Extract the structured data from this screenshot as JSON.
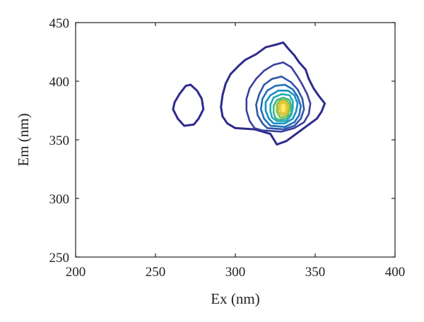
{
  "chart_data": {
    "type": "contour",
    "title": "",
    "xlabel": "Ex (nm)",
    "ylabel": "Em (nm)",
    "xlim": [
      200,
      400
    ],
    "ylim": [
      250,
      450
    ],
    "xticks": [
      200,
      250,
      300,
      350,
      400
    ],
    "yticks": [
      250,
      300,
      350,
      400,
      450
    ],
    "grid": false,
    "contours": [
      {
        "level": 1,
        "color": "#2e2a8c",
        "points": [
          [
            268,
            362
          ],
          [
            274,
            363
          ],
          [
            277,
            368
          ],
          [
            280,
            376
          ],
          [
            279,
            385
          ],
          [
            276,
            392
          ],
          [
            272,
            397
          ],
          [
            269,
            396
          ],
          [
            265,
            389
          ],
          [
            262,
            382
          ],
          [
            261,
            376
          ],
          [
            264,
            368
          ]
        ]
      },
      {
        "level": 1,
        "color": "#2e2a8c",
        "points": [
          [
            300,
            360
          ],
          [
            312,
            359
          ],
          [
            322,
            355
          ],
          [
            326,
            346
          ],
          [
            332,
            349
          ],
          [
            338,
            355
          ],
          [
            345,
            362
          ],
          [
            351,
            368
          ],
          [
            354,
            374
          ],
          [
            356,
            381
          ],
          [
            352,
            388
          ],
          [
            349,
            394
          ],
          [
            346,
            402
          ],
          [
            344,
            410
          ],
          [
            340,
            416
          ],
          [
            337,
            422
          ],
          [
            333,
            428
          ],
          [
            330,
            433
          ],
          [
            325,
            431
          ],
          [
            319,
            429
          ],
          [
            313,
            423
          ],
          [
            306,
            418
          ],
          [
            302,
            413
          ],
          [
            297,
            406
          ],
          [
            294,
            398
          ],
          [
            292,
            388
          ],
          [
            291,
            378
          ],
          [
            292,
            370
          ],
          [
            295,
            364
          ]
        ]
      },
      {
        "level": 2,
        "color": "#3b3f9e",
        "points": [
          [
            317,
            358
          ],
          [
            329,
            357
          ],
          [
            337,
            360
          ],
          [
            343,
            365
          ],
          [
            346,
            372
          ],
          [
            347,
            381
          ],
          [
            345,
            389
          ],
          [
            342,
            397
          ],
          [
            339,
            404
          ],
          [
            335,
            412
          ],
          [
            330,
            416
          ],
          [
            324,
            414
          ],
          [
            318,
            409
          ],
          [
            313,
            402
          ],
          [
            309,
            394
          ],
          [
            307,
            385
          ],
          [
            307,
            375
          ],
          [
            309,
            366
          ],
          [
            312,
            360
          ]
        ]
      },
      {
        "level": 3,
        "color": "#2f55a8",
        "points": [
          [
            320,
            360
          ],
          [
            330,
            359
          ],
          [
            337,
            362
          ],
          [
            341,
            368
          ],
          [
            343,
            376
          ],
          [
            342,
            385
          ],
          [
            339,
            393
          ],
          [
            335,
            399
          ],
          [
            329,
            404
          ],
          [
            323,
            402
          ],
          [
            318,
            397
          ],
          [
            315,
            389
          ],
          [
            313,
            380
          ],
          [
            314,
            371
          ],
          [
            317,
            364
          ]
        ]
      },
      {
        "level": 4,
        "color": "#1f70b8",
        "points": [
          [
            322,
            362
          ],
          [
            331,
            361
          ],
          [
            337,
            365
          ],
          [
            340,
            371
          ],
          [
            341,
            379
          ],
          [
            339,
            387
          ],
          [
            336,
            393
          ],
          [
            331,
            397
          ],
          [
            325,
            396
          ],
          [
            320,
            392
          ],
          [
            317,
            385
          ],
          [
            316,
            376
          ],
          [
            318,
            368
          ]
        ]
      },
      {
        "level": 5,
        "color": "#1a8fc4",
        "points": [
          [
            324,
            364
          ],
          [
            331,
            364
          ],
          [
            336,
            368
          ],
          [
            338,
            374
          ],
          [
            339,
            381
          ],
          [
            337,
            388
          ],
          [
            333,
            392
          ],
          [
            327,
            392
          ],
          [
            322,
            388
          ],
          [
            319,
            382
          ],
          [
            319,
            375
          ],
          [
            321,
            368
          ]
        ]
      },
      {
        "level": 6,
        "color": "#22a9b8",
        "points": [
          [
            326,
            366
          ],
          [
            332,
            366
          ],
          [
            335,
            371
          ],
          [
            336,
            377
          ],
          [
            336,
            383
          ],
          [
            334,
            388
          ],
          [
            329,
            389
          ],
          [
            324,
            386
          ],
          [
            322,
            380
          ],
          [
            322,
            374
          ],
          [
            323,
            369
          ]
        ]
      },
      {
        "level": 7,
        "color": "#3fb58a",
        "points": [
          [
            327,
            367
          ],
          [
            332,
            368
          ],
          [
            335,
            373
          ],
          [
            335,
            379
          ],
          [
            334,
            384
          ],
          [
            330,
            386
          ],
          [
            326,
            384
          ],
          [
            324,
            379
          ],
          [
            324,
            373
          ],
          [
            325,
            369
          ]
        ]
      },
      {
        "level": 8,
        "color": "#7ec24a",
        "points": [
          [
            328,
            369
          ],
          [
            332,
            370
          ],
          [
            334,
            375
          ],
          [
            334,
            380
          ],
          [
            332,
            384
          ],
          [
            328,
            384
          ],
          [
            326,
            380
          ],
          [
            326,
            374
          ]
        ]
      },
      {
        "level": 9,
        "color": "#c8c83a",
        "points": [
          [
            329,
            371
          ],
          [
            332,
            372
          ],
          [
            333,
            376
          ],
          [
            333,
            380
          ],
          [
            331,
            383
          ],
          [
            328,
            382
          ],
          [
            327,
            378
          ],
          [
            327,
            374
          ]
        ]
      },
      {
        "level": 10,
        "color": "#f2c230",
        "points": [
          [
            329,
            373
          ],
          [
            331,
            373
          ],
          [
            332,
            376
          ],
          [
            332,
            380
          ],
          [
            330,
            382
          ],
          [
            328,
            380
          ],
          [
            328,
            376
          ]
        ]
      },
      {
        "level": 11,
        "color": "#f7e84a",
        "points": [
          [
            330,
            375
          ],
          [
            331,
            375
          ],
          [
            331,
            378
          ],
          [
            330,
            380
          ],
          [
            329,
            378
          ]
        ]
      }
    ]
  }
}
